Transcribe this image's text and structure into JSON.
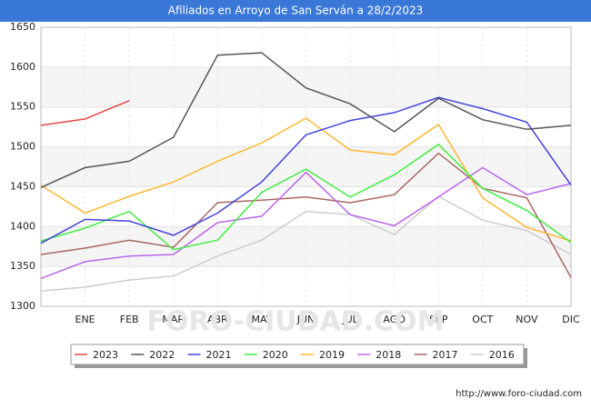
{
  "chart_data": {
    "type": "line",
    "title": "Afiliados en Arroyo de San Serván a 28/2/2023",
    "categories": [
      null,
      "ENE",
      "FEB",
      "MAR",
      "ABR",
      "MAY",
      "JUN",
      "JUL",
      "AGO",
      "SEP",
      "OCT",
      "NOV",
      "DIC"
    ],
    "ylim": [
      1300,
      1650
    ],
    "yticks": [
      1300,
      1350,
      1400,
      1450,
      1500,
      1550,
      1600,
      1650
    ],
    "grid": true,
    "legend": "bottom",
    "series": [
      {
        "name": "2023",
        "color": "#e84545",
        "values": [
          1527,
          1535,
          1558,
          null,
          null,
          null,
          null,
          null,
          null,
          null,
          null,
          null,
          null
        ]
      },
      {
        "name": "2022",
        "color": "#555555",
        "values": [
          1449,
          1474,
          1482,
          1512,
          1615,
          1618,
          1574,
          1554,
          1519,
          1561,
          1534,
          1522,
          1527
        ]
      },
      {
        "name": "2021",
        "color": "#4444dd",
        "values": [
          1379,
          1409,
          1407,
          1389,
          1417,
          1456,
          1515,
          1533,
          1543,
          1562,
          1548,
          1531,
          1452
        ]
      },
      {
        "name": "2020",
        "color": "#44ee44",
        "values": [
          1382,
          1398,
          1419,
          1371,
          1383,
          1443,
          1472,
          1437,
          1465,
          1503,
          1448,
          1420,
          1380
        ]
      },
      {
        "name": "2019",
        "color": "#ffb833",
        "values": [
          1452,
          1417,
          1438,
          1456,
          1482,
          1505,
          1536,
          1496,
          1490,
          1528,
          1436,
          1399,
          1382
        ]
      },
      {
        "name": "2018",
        "color": "#bb66ee",
        "values": [
          1335,
          1356,
          1363,
          1365,
          1405,
          1413,
          1468,
          1415,
          1401,
          1437,
          1474,
          1440,
          1454
        ]
      },
      {
        "name": "2017",
        "color": "#aa6666",
        "values": [
          1365,
          1373,
          1383,
          1374,
          1430,
          1433,
          1437,
          1430,
          1440,
          1492,
          1448,
          1436,
          1336
        ]
      },
      {
        "name": "2016",
        "color": "#cccccc",
        "values": [
          1319,
          1324,
          1333,
          1338,
          1363,
          1383,
          1419,
          1415,
          1390,
          1438,
          1408,
          1395,
          1365
        ]
      }
    ],
    "watermark": "FORO-CIUDAD.COM",
    "source": "http://www.foro-ciudad.com"
  }
}
